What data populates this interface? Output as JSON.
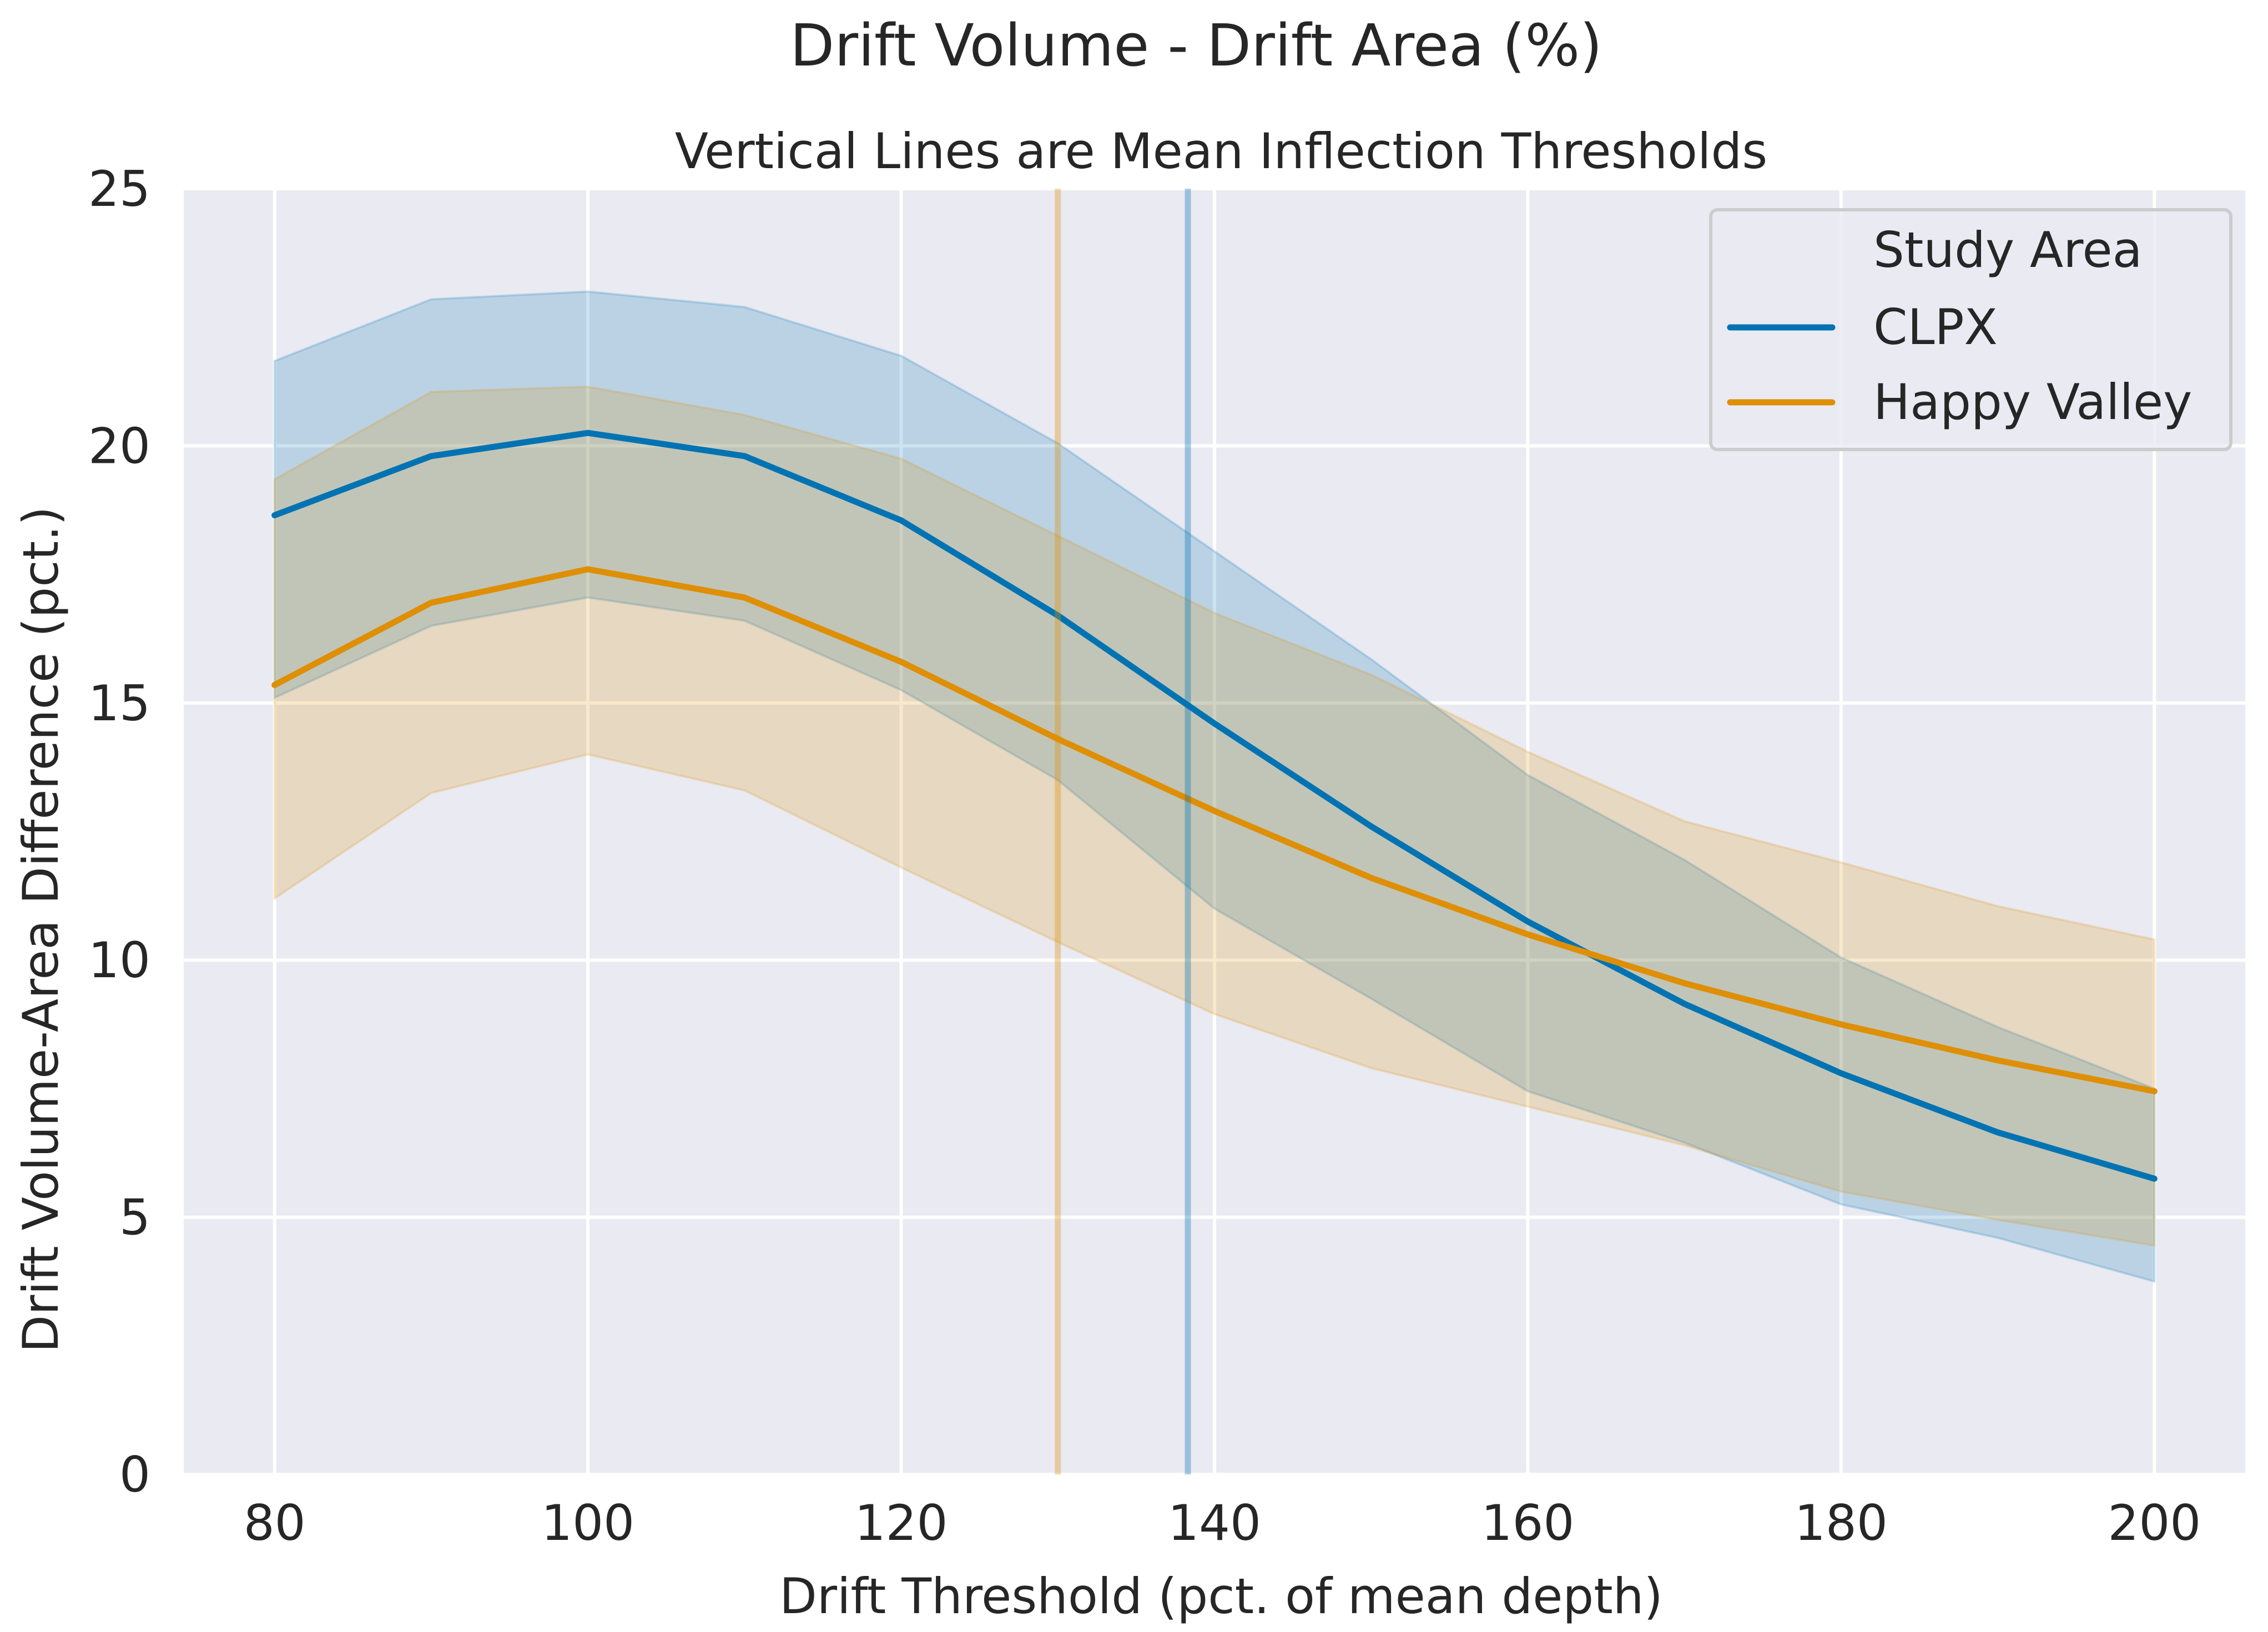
{
  "chart_data": {
    "type": "line",
    "title": "Drift Volume - Drift Area (%)",
    "subtitle": "Vertical Lines are Mean Inflection Thresholds",
    "xlabel": "Drift Threshold (pct. of mean depth)",
    "ylabel": "Drift Volume-Area Difference (pct.)",
    "xlim": [
      74.2,
      205.8
    ],
    "ylim": [
      0,
      25
    ],
    "xticks": [
      80,
      100,
      120,
      140,
      160,
      180,
      200
    ],
    "yticks": [
      0,
      5,
      10,
      15,
      20,
      25
    ],
    "grid": true,
    "legend": {
      "title": "Study Area",
      "placement": "top-right"
    },
    "x": [
      80,
      90,
      100,
      110,
      120,
      130,
      140,
      150,
      160,
      170,
      180,
      190,
      200
    ],
    "series": [
      {
        "name": "CLPX",
        "color": "#0173b2",
        "values": [
          18.65,
          19.8,
          20.25,
          19.8,
          18.55,
          16.7,
          14.6,
          12.6,
          10.75,
          9.15,
          7.8,
          6.65,
          5.75
        ],
        "ci_lower": [
          15.1,
          16.5,
          17.05,
          16.6,
          15.25,
          13.5,
          11.0,
          9.25,
          7.45,
          6.45,
          5.25,
          4.6,
          3.75
        ],
        "ci_upper": [
          21.65,
          22.85,
          23.0,
          22.7,
          21.75,
          20.05,
          17.95,
          15.85,
          13.6,
          11.95,
          10.05,
          8.7,
          7.5
        ],
        "mean_inflection_threshold": 138.3
      },
      {
        "name": "Happy Valley",
        "color": "#de8f05",
        "values": [
          15.35,
          16.95,
          17.6,
          17.05,
          15.8,
          14.3,
          12.9,
          11.6,
          10.5,
          9.55,
          8.75,
          8.05,
          7.45
        ],
        "ci_lower": [
          11.2,
          13.25,
          14.0,
          13.3,
          11.8,
          10.35,
          8.95,
          7.9,
          7.15,
          6.4,
          5.5,
          4.95,
          4.45
        ],
        "ci_upper": [
          19.35,
          21.05,
          21.15,
          20.6,
          19.75,
          18.25,
          16.75,
          15.55,
          14.05,
          12.7,
          11.9,
          11.05,
          10.4
        ],
        "mean_inflection_threshold": 130.0
      }
    ]
  }
}
